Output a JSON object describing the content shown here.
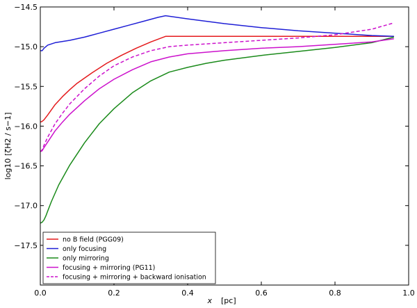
{
  "chart_data": {
    "type": "line",
    "title": "",
    "xlabel": "x",
    "xlabel_unit": "[pc]",
    "ylabel": "log10 [ζH2 / s−1]",
    "xlim": [
      0.0,
      1.0
    ],
    "ylim": [
      -18.0,
      -14.5
    ],
    "xticks": [
      0.0,
      0.2,
      0.4,
      0.6,
      0.8,
      1.0
    ],
    "xtick_labels": [
      "0.0",
      "0.2",
      "0.4",
      "0.6",
      "0.8",
      "1.0"
    ],
    "yticks": [
      -14.5,
      -15.0,
      -15.5,
      -16.0,
      -16.5,
      -17.0,
      -17.5
    ],
    "ytick_labels": [
      "−14.5",
      "−15.0",
      "−15.5",
      "−16.0",
      "−16.5",
      "−17.0",
      "−17.5"
    ],
    "grid": false,
    "legend_position": "bottom-left",
    "series": [
      {
        "name": "no B field (PGG09)",
        "color": "#e41a1c",
        "style": "solid",
        "x": [
          0.0,
          0.005,
          0.01,
          0.02,
          0.04,
          0.06,
          0.08,
          0.1,
          0.14,
          0.18,
          0.22,
          0.26,
          0.3,
          0.34,
          0.4,
          0.6,
          0.8,
          0.96
        ],
        "y": [
          -15.95,
          -15.94,
          -15.92,
          -15.86,
          -15.73,
          -15.63,
          -15.54,
          -15.46,
          -15.33,
          -15.21,
          -15.11,
          -15.02,
          -14.94,
          -14.87,
          -14.87,
          -14.87,
          -14.87,
          -14.87
        ]
      },
      {
        "name": "only focusing",
        "color": "#1f1fd6",
        "style": "solid",
        "x": [
          0.0,
          0.005,
          0.01,
          0.02,
          0.04,
          0.08,
          0.12,
          0.16,
          0.2,
          0.24,
          0.28,
          0.32,
          0.34,
          0.4,
          0.5,
          0.6,
          0.7,
          0.8,
          0.9,
          0.96
        ],
        "y": [
          -15.05,
          -15.05,
          -15.02,
          -14.98,
          -14.95,
          -14.92,
          -14.88,
          -14.83,
          -14.78,
          -14.73,
          -14.68,
          -14.63,
          -14.61,
          -14.65,
          -14.71,
          -14.76,
          -14.8,
          -14.83,
          -14.86,
          -14.87
        ]
      },
      {
        "name": "only mirroring",
        "color": "#1a8a1a",
        "style": "solid",
        "x": [
          0.0,
          0.005,
          0.01,
          0.015,
          0.02,
          0.03,
          0.05,
          0.08,
          0.12,
          0.16,
          0.2,
          0.25,
          0.3,
          0.35,
          0.4,
          0.45,
          0.5,
          0.6,
          0.7,
          0.8,
          0.9,
          0.96
        ],
        "y": [
          -17.22,
          -17.21,
          -17.18,
          -17.13,
          -17.07,
          -16.95,
          -16.74,
          -16.49,
          -16.21,
          -15.97,
          -15.78,
          -15.58,
          -15.43,
          -15.32,
          -15.26,
          -15.21,
          -15.17,
          -15.11,
          -15.06,
          -15.01,
          -14.95,
          -14.88
        ]
      },
      {
        "name": "focusing + mirroring (PG11)",
        "color": "#cc11cc",
        "style": "solid",
        "x": [
          0.0,
          0.005,
          0.01,
          0.02,
          0.04,
          0.06,
          0.08,
          0.12,
          0.16,
          0.2,
          0.25,
          0.3,
          0.35,
          0.4,
          0.5,
          0.6,
          0.7,
          0.8,
          0.9,
          0.96
        ],
        "y": [
          -16.32,
          -16.31,
          -16.27,
          -16.2,
          -16.06,
          -15.95,
          -15.85,
          -15.68,
          -15.53,
          -15.41,
          -15.29,
          -15.19,
          -15.13,
          -15.09,
          -15.05,
          -15.02,
          -15.0,
          -14.97,
          -14.94,
          -14.9
        ]
      },
      {
        "name": "focusing + mirroring + backward ionisation",
        "color": "#cc11cc",
        "style": "dashed",
        "x": [
          0.0,
          0.005,
          0.01,
          0.02,
          0.04,
          0.06,
          0.08,
          0.12,
          0.16,
          0.2,
          0.25,
          0.3,
          0.35,
          0.4,
          0.5,
          0.6,
          0.7,
          0.8,
          0.9,
          0.96
        ],
        "y": [
          -16.32,
          -16.3,
          -16.24,
          -16.14,
          -15.97,
          -15.84,
          -15.72,
          -15.53,
          -15.37,
          -15.24,
          -15.13,
          -15.05,
          -15.0,
          -14.98,
          -14.95,
          -14.92,
          -14.89,
          -14.85,
          -14.78,
          -14.7
        ]
      }
    ]
  }
}
